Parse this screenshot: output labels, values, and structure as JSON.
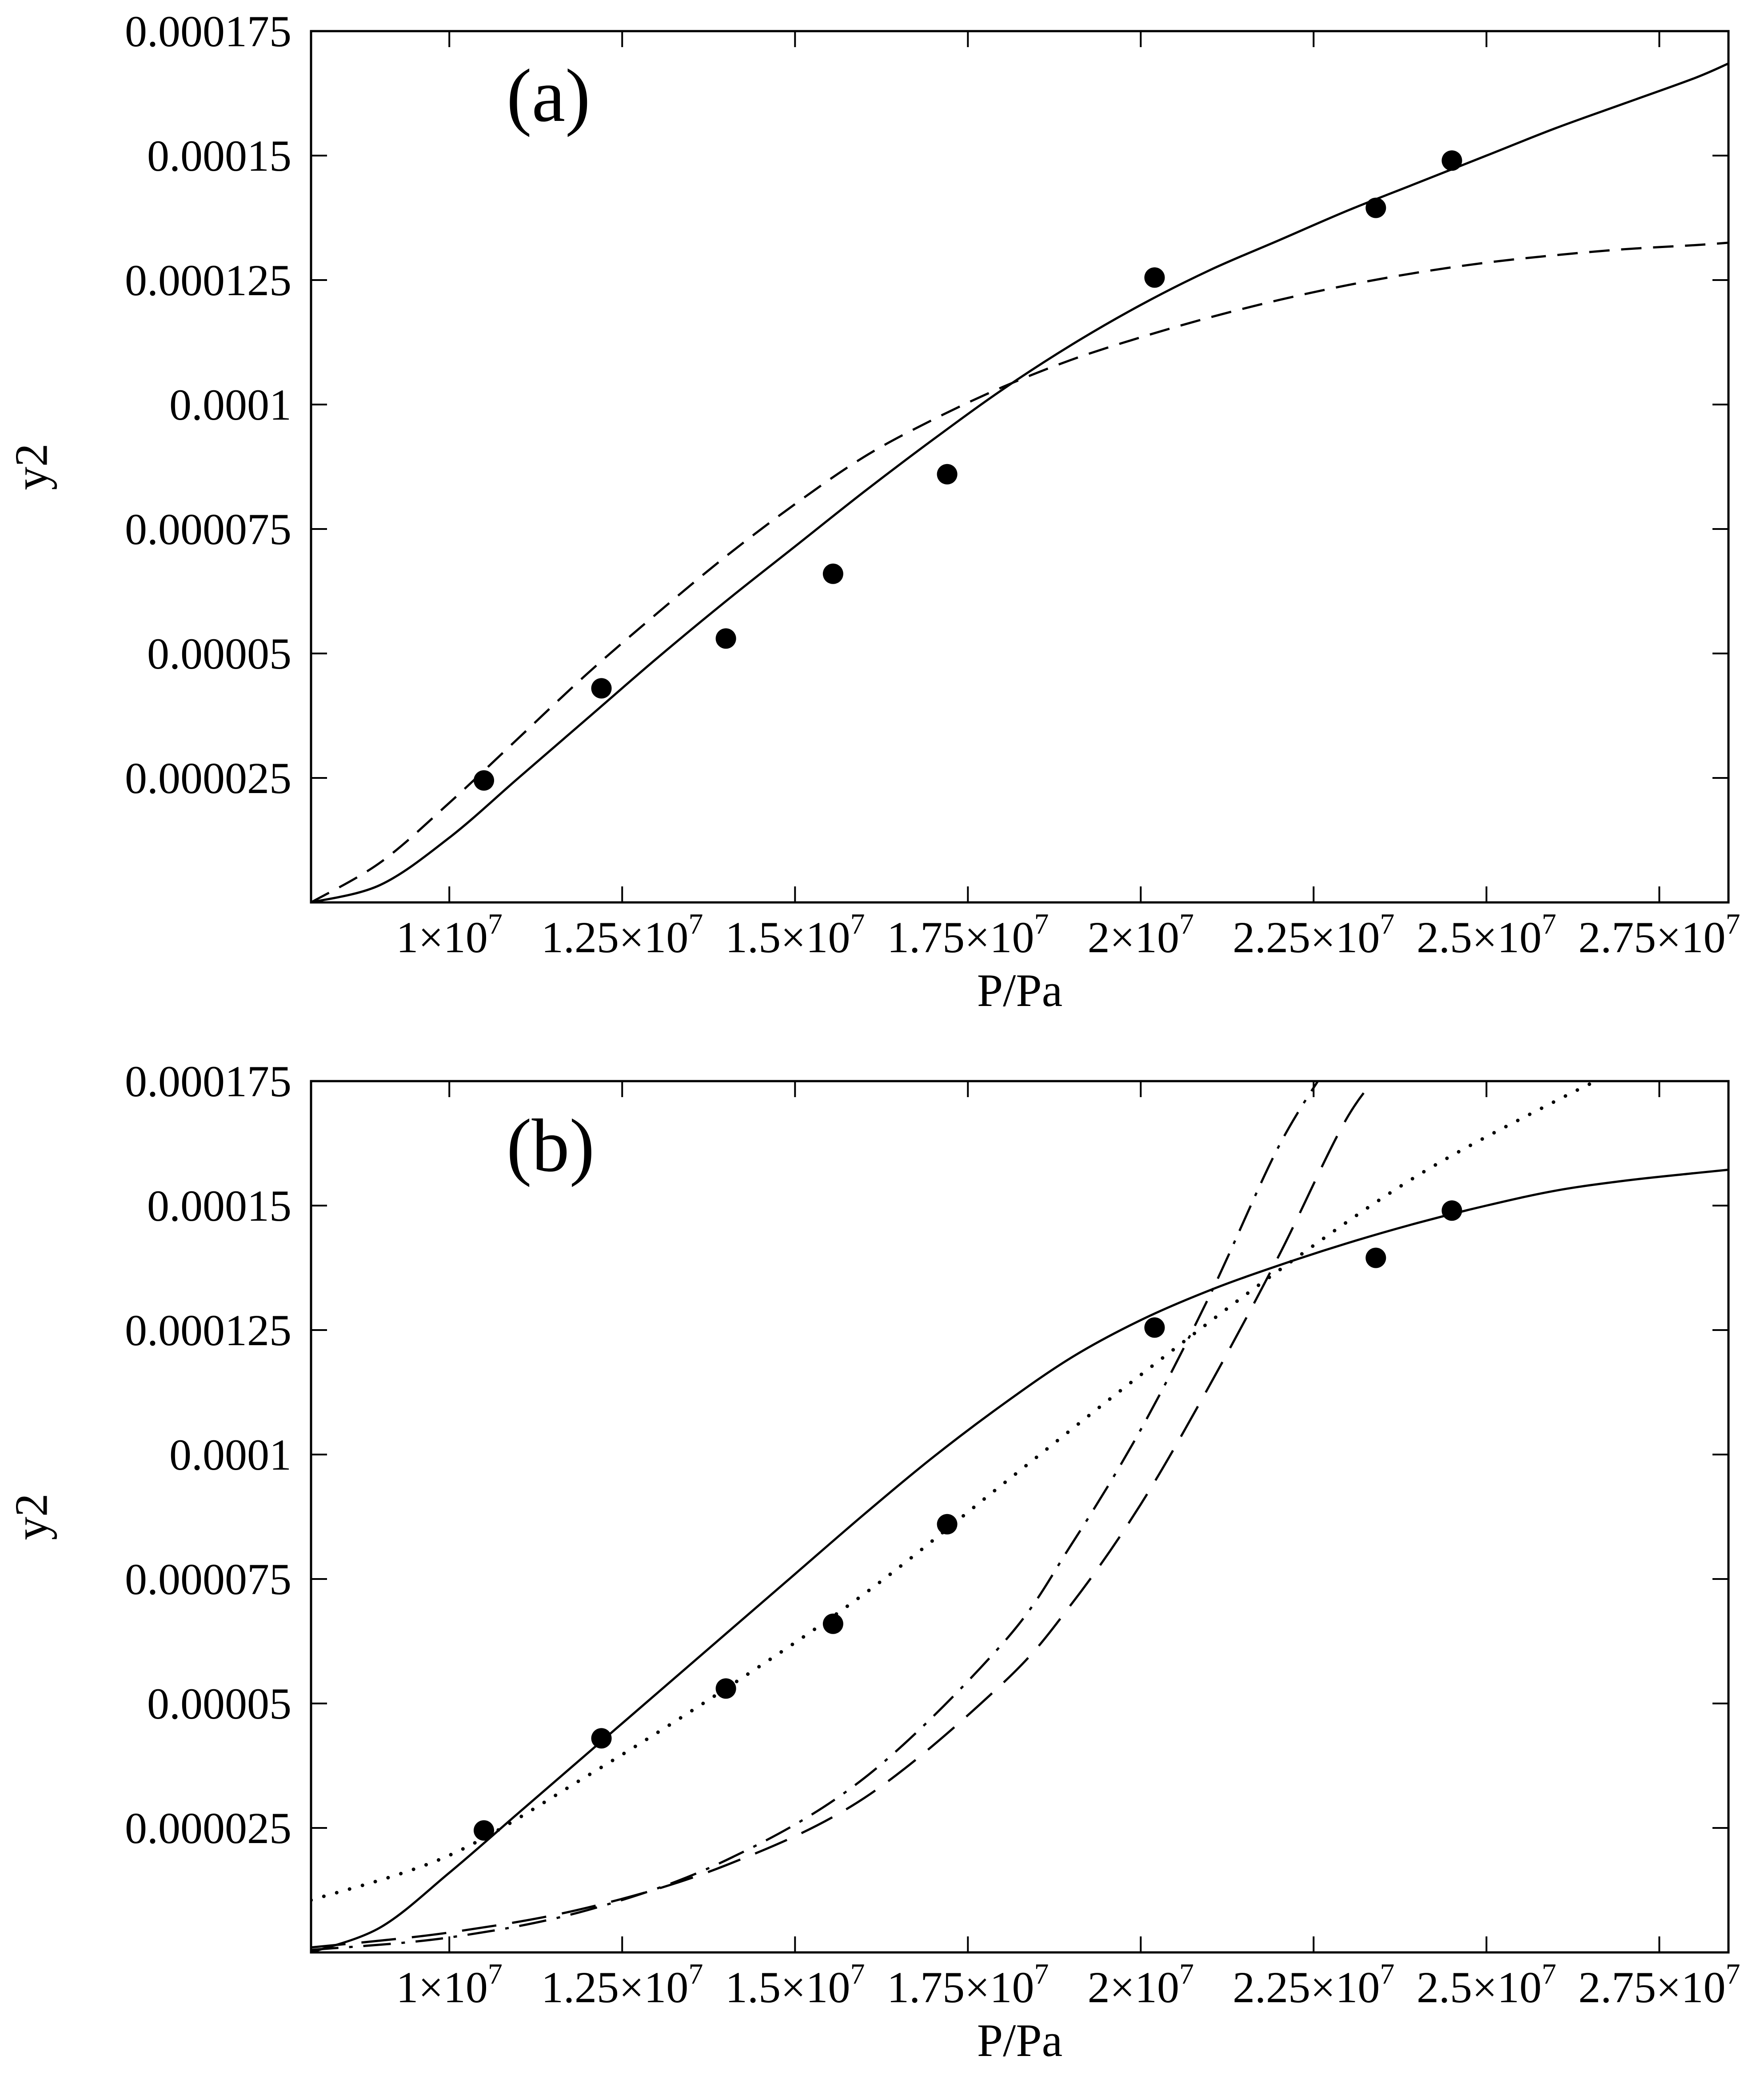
{
  "page": {
    "background": "#ffffff",
    "ink": "#000000"
  },
  "chart_data": [
    {
      "panel_label": "(a)",
      "type": "line",
      "title": "",
      "xlabel": "P/Pa",
      "ylabel": "y2",
      "x_unit_scale": "x10^7 Pa",
      "y_unit_scale": "x10^-5",
      "xlim": [
        0.8,
        2.85
      ],
      "ylim": [
        0,
        17.5
      ],
      "grid": false,
      "legend_position": "none",
      "xticks": {
        "values": [
          1,
          1.25,
          1.5,
          1.75,
          2,
          2.25,
          2.5,
          2.75
        ],
        "labels": [
          "1×10^7",
          "1.25×10^7",
          "1.5×10^7",
          "1.75×10^7",
          "2×10^7",
          "2.25×10^7",
          "2.5×10^7",
          "2.75×10^7"
        ]
      },
      "yticks": {
        "values": [
          2.5,
          5,
          7.5,
          10,
          12.5,
          15,
          17.5
        ],
        "labels": [
          "0.000025",
          "0.00005",
          "0.000075",
          "0.0001",
          "0.000125",
          "0.00015",
          "0.000175"
        ]
      },
      "points": [
        [
          1.05,
          2.45
        ],
        [
          1.22,
          4.3
        ],
        [
          1.4,
          5.3
        ],
        [
          1.555,
          6.6
        ],
        [
          1.72,
          8.6
        ],
        [
          2.02,
          12.55
        ],
        [
          2.34,
          13.95
        ],
        [
          2.45,
          14.9
        ]
      ],
      "series": [
        {
          "name": "solid-curve",
          "style": "solid",
          "x": [
            0.8,
            0.9,
            1.0,
            1.1,
            1.2,
            1.3,
            1.4,
            1.5,
            1.6,
            1.7,
            1.8,
            1.9,
            2.0,
            2.1,
            2.2,
            2.3,
            2.4,
            2.5,
            2.6,
            2.7,
            2.8,
            2.85
          ],
          "y": [
            0,
            0.35,
            1.3,
            2.5,
            3.7,
            4.9,
            6.05,
            7.15,
            8.25,
            9.3,
            10.3,
            11.2,
            12.0,
            12.7,
            13.3,
            13.9,
            14.45,
            15.0,
            15.55,
            16.05,
            16.55,
            16.85
          ]
        },
        {
          "name": "dashed-curve",
          "style": "dashed",
          "x": [
            0.8,
            0.9,
            1.0,
            1.1,
            1.2,
            1.3,
            1.4,
            1.5,
            1.6,
            1.7,
            1.8,
            1.9,
            2.0,
            2.1,
            2.2,
            2.3,
            2.4,
            2.5,
            2.6,
            2.7,
            2.8,
            2.85
          ],
          "y": [
            0,
            0.8,
            2.0,
            3.3,
            4.6,
            5.8,
            6.95,
            8.0,
            8.95,
            9.7,
            10.35,
            10.9,
            11.35,
            11.75,
            12.1,
            12.4,
            12.65,
            12.85,
            13.0,
            13.12,
            13.2,
            13.25
          ]
        }
      ]
    },
    {
      "panel_label": "(b)",
      "type": "line",
      "title": "",
      "xlabel": "P/Pa",
      "ylabel": "y2",
      "x_unit_scale": "x10^7 Pa",
      "y_unit_scale": "x10^-5",
      "xlim": [
        0.8,
        2.85
      ],
      "ylim": [
        0,
        17.5
      ],
      "grid": false,
      "legend_position": "none",
      "xticks": {
        "values": [
          1,
          1.25,
          1.5,
          1.75,
          2,
          2.25,
          2.5,
          2.75
        ],
        "labels": [
          "1×10^7",
          "1.25×10^7",
          "1.5×10^7",
          "1.75×10^7",
          "2×10^7",
          "2.25×10^7",
          "2.5×10^7",
          "2.75×10^7"
        ]
      },
      "yticks": {
        "values": [
          2.5,
          5,
          7.5,
          10,
          12.5,
          15,
          17.5
        ],
        "labels": [
          "0.000025",
          "0.00005",
          "0.000075",
          "0.0001",
          "0.000125",
          "0.00015",
          "0.000175"
        ]
      },
      "points": [
        [
          1.05,
          2.45
        ],
        [
          1.22,
          4.3
        ],
        [
          1.4,
          5.3
        ],
        [
          1.555,
          6.6
        ],
        [
          1.72,
          8.6
        ],
        [
          2.02,
          12.55
        ],
        [
          2.34,
          13.95
        ],
        [
          2.45,
          14.9
        ]
      ],
      "series": [
        {
          "name": "solid-curve",
          "style": "solid",
          "x": [
            0.8,
            0.9,
            1.0,
            1.1,
            1.2,
            1.3,
            1.4,
            1.5,
            1.6,
            1.7,
            1.8,
            1.9,
            2.0,
            2.1,
            2.2,
            2.3,
            2.4,
            2.5,
            2.6,
            2.7,
            2.8,
            2.85
          ],
          "y": [
            0,
            0.5,
            1.6,
            2.8,
            4.0,
            5.2,
            6.4,
            7.6,
            8.8,
            9.95,
            11.0,
            11.95,
            12.7,
            13.3,
            13.8,
            14.25,
            14.65,
            15.0,
            15.3,
            15.5,
            15.65,
            15.72
          ]
        },
        {
          "name": "dotted-curve",
          "style": "dotted",
          "x": [
            0.8,
            1.0,
            1.2,
            1.4,
            1.6,
            1.8,
            2.0,
            2.2,
            2.4,
            2.6,
            2.72
          ],
          "y": [
            1.05,
            1.95,
            3.55,
            5.3,
            7.2,
            9.4,
            11.6,
            13.7,
            15.6,
            17.1,
            17.9
          ]
        },
        {
          "name": "dash-dot-curve",
          "style": "dashdot",
          "x": [
            0.8,
            1.0,
            1.2,
            1.4,
            1.6,
            1.8,
            1.9,
            2.0,
            2.1,
            2.2,
            2.28
          ],
          "y": [
            0.05,
            0.3,
            0.85,
            1.85,
            3.5,
            6.2,
            8.2,
            10.5,
            13.2,
            16.2,
            18.0
          ]
        },
        {
          "name": "long-dash-curve",
          "style": "longdash",
          "x": [
            0.8,
            1.0,
            1.2,
            1.4,
            1.6,
            1.8,
            1.9,
            2.0,
            2.1,
            2.2,
            2.3,
            2.37
          ],
          "y": [
            0.1,
            0.4,
            0.9,
            1.75,
            3.1,
            5.4,
            7.0,
            9.0,
            11.4,
            14.0,
            16.8,
            18.0
          ]
        }
      ]
    }
  ]
}
